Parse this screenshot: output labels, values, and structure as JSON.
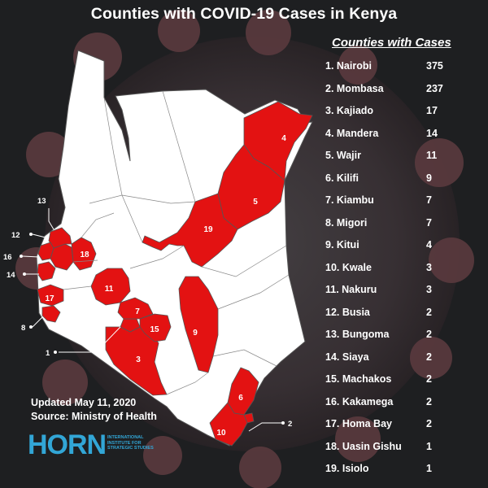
{
  "title": "Counties with COVID-19 Cases in Kenya",
  "list_header": "Counties with Cases",
  "counties": [
    {
      "label": "1. Nairobi",
      "count": "375"
    },
    {
      "label": "2. Mombasa",
      "count": "237"
    },
    {
      "label": "3. Kajiado",
      "count": "17"
    },
    {
      "label": "4. Mandera",
      "count": "14"
    },
    {
      "label": "5.  Wajir",
      "count": "11"
    },
    {
      "label": "6. Kilifi",
      "count": "9"
    },
    {
      "label": "7. Kiambu",
      "count": "7"
    },
    {
      "label": "8. Migori",
      "count": "7"
    },
    {
      "label": "9. Kitui",
      "count": "4"
    },
    {
      "label": "10. Kwale",
      "count": "3"
    },
    {
      "label": "11. Nakuru",
      "count": "3"
    },
    {
      "label": "12. Busia",
      "count": "2"
    },
    {
      "label": "13. Bungoma",
      "count": "2"
    },
    {
      "label": "14. Siaya",
      "count": "2"
    },
    {
      "label": "15. Machakos",
      "count": "2"
    },
    {
      "label": "16. Kakamega",
      "count": "2"
    },
    {
      "label": "17. Homa Bay",
      "count": "2"
    },
    {
      "label": "18. Uasin Gishu",
      "count": "1"
    },
    {
      "label": "19. Isiolo",
      "count": "1"
    }
  ],
  "map_labels": {
    "c1": "1",
    "c2": "2",
    "c3": "3",
    "c4": "4",
    "c5": "5",
    "c6": "6",
    "c7": "7",
    "c8": "8",
    "c9": "9",
    "c10": "10",
    "c11": "11",
    "c12": "12",
    "c13": "13",
    "c14": "14",
    "c15": "15",
    "c16": "16",
    "c17": "17",
    "c18": "18",
    "c19": "19"
  },
  "updated_line": "Updated May 11, 2020",
  "source_line": "Source: Ministry of Health",
  "logo": {
    "wordmark": "HORN",
    "subtitle": "International Institute for Strategic Studies"
  },
  "colors": {
    "background": "#1e1f21",
    "affected_county": "#e31212",
    "unaffected_county": "#ffffff",
    "county_border": "#555555",
    "logo_blue": "#32a6d6",
    "virus_backdrop": "#5a3a3e"
  }
}
